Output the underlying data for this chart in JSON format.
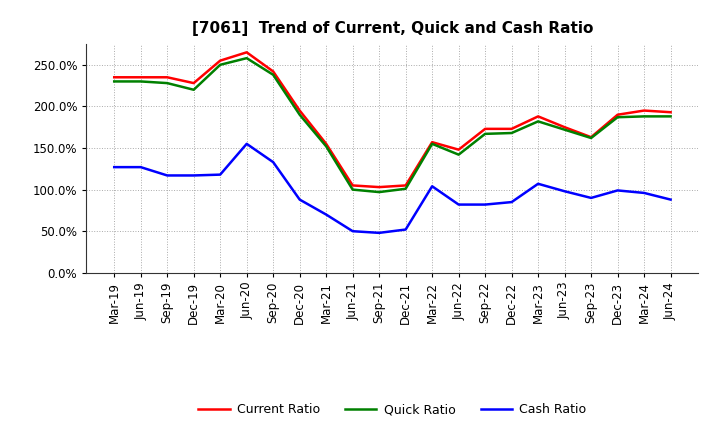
{
  "title": "[7061]  Trend of Current, Quick and Cash Ratio",
  "labels": [
    "Mar-19",
    "Jun-19",
    "Sep-19",
    "Dec-19",
    "Mar-20",
    "Jun-20",
    "Sep-20",
    "Dec-20",
    "Mar-21",
    "Jun-21",
    "Sep-21",
    "Dec-21",
    "Mar-22",
    "Jun-22",
    "Sep-22",
    "Dec-22",
    "Mar-23",
    "Jun-23",
    "Sep-23",
    "Dec-23",
    "Mar-24",
    "Jun-24"
  ],
  "current_ratio": [
    2.35,
    2.35,
    2.35,
    2.28,
    2.55,
    2.65,
    2.42,
    1.95,
    1.55,
    1.05,
    1.03,
    1.05,
    1.57,
    1.48,
    1.73,
    1.73,
    1.88,
    1.75,
    1.63,
    1.9,
    1.95,
    1.93
  ],
  "quick_ratio": [
    2.3,
    2.3,
    2.28,
    2.2,
    2.5,
    2.58,
    2.38,
    1.9,
    1.52,
    1.0,
    0.97,
    1.01,
    1.55,
    1.42,
    1.67,
    1.68,
    1.82,
    1.72,
    1.62,
    1.87,
    1.88,
    1.88
  ],
  "cash_ratio": [
    1.27,
    1.27,
    1.17,
    1.17,
    1.18,
    1.55,
    1.33,
    0.88,
    0.7,
    0.5,
    0.48,
    0.52,
    1.04,
    0.82,
    0.82,
    0.85,
    1.07,
    0.98,
    0.9,
    0.99,
    0.96,
    0.88
  ],
  "current_color": "#FF0000",
  "quick_color": "#008000",
  "cash_color": "#0000FF",
  "ylim": [
    0.0,
    2.75
  ],
  "yticks": [
    0.0,
    0.5,
    1.0,
    1.5,
    2.0,
    2.5
  ],
  "background_color": "#ffffff",
  "grid_color": "#aaaaaa",
  "title_fontsize": 11,
  "tick_fontsize": 8.5,
  "legend_fontsize": 9
}
